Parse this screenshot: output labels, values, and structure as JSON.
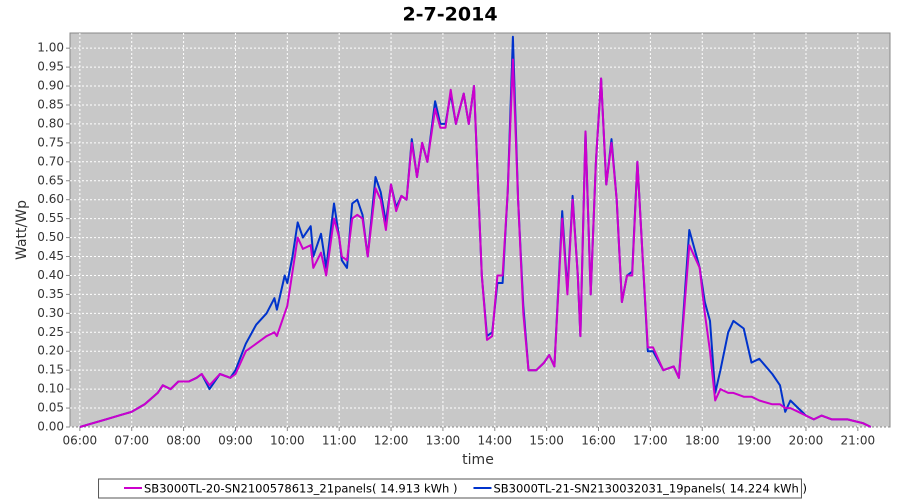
{
  "chart_data": {
    "type": "line",
    "title": "2-7-2014",
    "x_label": "time",
    "y_label": "Watt/Wp",
    "x": [
      6.0,
      6.25,
      6.5,
      6.75,
      7.0,
      7.25,
      7.5,
      7.6,
      7.75,
      7.9,
      8.1,
      8.25,
      8.35,
      8.5,
      8.7,
      8.9,
      9.0,
      9.2,
      9.4,
      9.6,
      9.75,
      9.8,
      9.95,
      10.0,
      10.1,
      10.2,
      10.3,
      10.45,
      10.5,
      10.65,
      10.75,
      10.9,
      11.0,
      11.05,
      11.15,
      11.25,
      11.35,
      11.45,
      11.55,
      11.7,
      11.8,
      11.9,
      12.0,
      12.1,
      12.2,
      12.3,
      12.4,
      12.5,
      12.6,
      12.7,
      12.85,
      12.95,
      13.05,
      13.15,
      13.25,
      13.4,
      13.5,
      13.6,
      13.75,
      13.85,
      13.95,
      14.05,
      14.15,
      14.25,
      14.35,
      14.45,
      14.55,
      14.65,
      14.8,
      14.95,
      15.05,
      15.15,
      15.3,
      15.4,
      15.5,
      15.6,
      15.65,
      15.75,
      15.85,
      15.95,
      16.05,
      16.15,
      16.25,
      16.35,
      16.45,
      16.55,
      16.65,
      16.75,
      16.85,
      16.95,
      17.05,
      17.25,
      17.45,
      17.55,
      17.75,
      17.85,
      17.95,
      18.05,
      18.15,
      18.25,
      18.35,
      18.5,
      18.6,
      18.8,
      18.95,
      19.1,
      19.35,
      19.5,
      19.6,
      19.7,
      19.85,
      20.0,
      20.15,
      20.3,
      20.5,
      20.8,
      21.1,
      21.25
    ],
    "series": [
      {
        "name": "SB3000TL-20-SN2100578613_21panels( 14.913 kWh )",
        "color": "#cc00cc",
        "values": [
          0,
          0.01,
          0.02,
          0.03,
          0.04,
          0.06,
          0.09,
          0.11,
          0.1,
          0.12,
          0.12,
          0.13,
          0.14,
          0.11,
          0.14,
          0.13,
          0.14,
          0.2,
          0.22,
          0.24,
          0.25,
          0.24,
          0.3,
          0.32,
          0.41,
          0.5,
          0.47,
          0.48,
          0.42,
          0.46,
          0.4,
          0.55,
          0.5,
          0.45,
          0.44,
          0.55,
          0.56,
          0.55,
          0.45,
          0.63,
          0.6,
          0.52,
          0.64,
          0.57,
          0.61,
          0.6,
          0.75,
          0.66,
          0.75,
          0.7,
          0.84,
          0.79,
          0.79,
          0.89,
          0.8,
          0.88,
          0.8,
          0.9,
          0.4,
          0.23,
          0.24,
          0.4,
          0.4,
          0.62,
          0.97,
          0.6,
          0.3,
          0.15,
          0.15,
          0.17,
          0.19,
          0.16,
          0.55,
          0.35,
          0.6,
          0.4,
          0.24,
          0.78,
          0.35,
          0.7,
          0.92,
          0.64,
          0.75,
          0.6,
          0.33,
          0.4,
          0.4,
          0.7,
          0.45,
          0.21,
          0.21,
          0.15,
          0.16,
          0.13,
          0.48,
          0.45,
          0.42,
          0.3,
          0.2,
          0.07,
          0.1,
          0.09,
          0.09,
          0.08,
          0.08,
          0.07,
          0.06,
          0.06,
          0.05,
          0.05,
          0.04,
          0.03,
          0.02,
          0.03,
          0.02,
          0.02,
          0.01,
          0
        ]
      },
      {
        "name": "SB3000TL-21-SN2130032031_19panels( 14.224 kWh )",
        "color": "#0033cc",
        "values": [
          0,
          0.01,
          0.02,
          0.03,
          0.04,
          0.06,
          0.09,
          0.11,
          0.1,
          0.12,
          0.12,
          0.13,
          0.14,
          0.1,
          0.14,
          0.13,
          0.15,
          0.22,
          0.27,
          0.3,
          0.34,
          0.31,
          0.4,
          0.38,
          0.45,
          0.54,
          0.5,
          0.53,
          0.45,
          0.51,
          0.42,
          0.59,
          0.5,
          0.44,
          0.42,
          0.59,
          0.6,
          0.56,
          0.45,
          0.66,
          0.62,
          0.54,
          0.64,
          0.58,
          0.61,
          0.6,
          0.76,
          0.66,
          0.75,
          0.7,
          0.86,
          0.8,
          0.8,
          0.88,
          0.8,
          0.88,
          0.8,
          0.9,
          0.4,
          0.24,
          0.25,
          0.38,
          0.38,
          0.62,
          1.03,
          0.6,
          0.32,
          0.15,
          0.15,
          0.17,
          0.19,
          0.16,
          0.57,
          0.36,
          0.61,
          0.4,
          0.24,
          0.78,
          0.35,
          0.7,
          0.92,
          0.64,
          0.76,
          0.6,
          0.33,
          0.4,
          0.41,
          0.7,
          0.45,
          0.2,
          0.2,
          0.15,
          0.16,
          0.13,
          0.52,
          0.47,
          0.42,
          0.33,
          0.28,
          0.09,
          0.15,
          0.25,
          0.28,
          0.26,
          0.17,
          0.18,
          0.14,
          0.11,
          0.04,
          0.07,
          0.05,
          0.03,
          0.02,
          0.03,
          0.02,
          0.02,
          0.01,
          0
        ]
      }
    ],
    "xlim": [
      5.81,
      21.62
    ],
    "xticks": [
      {
        "value": 6,
        "label": "06:00"
      },
      {
        "value": 7,
        "label": "07:00"
      },
      {
        "value": 8,
        "label": "08:00"
      },
      {
        "value": 9,
        "label": "09:00"
      },
      {
        "value": 10,
        "label": "10:00"
      },
      {
        "value": 11,
        "label": "11:00"
      },
      {
        "value": 12,
        "label": "12:00"
      },
      {
        "value": 13,
        "label": "13:00"
      },
      {
        "value": 14,
        "label": "14:00"
      },
      {
        "value": 15,
        "label": "15:00"
      },
      {
        "value": 16,
        "label": "16:00"
      },
      {
        "value": 17,
        "label": "17:00"
      },
      {
        "value": 18,
        "label": "18:00"
      },
      {
        "value": 19,
        "label": "19:00"
      },
      {
        "value": 20,
        "label": "20:00"
      },
      {
        "value": 21,
        "label": "21:00"
      }
    ],
    "ylim": [
      0,
      1.04
    ],
    "yticks": [
      {
        "value": 0,
        "label": "0.00"
      },
      {
        "value": 0.05,
        "label": "0.05"
      },
      {
        "value": 0.1,
        "label": "0.10"
      },
      {
        "value": 0.15,
        "label": "0.15"
      },
      {
        "value": 0.2,
        "label": "0.20"
      },
      {
        "value": 0.25,
        "label": "0.25"
      },
      {
        "value": 0.3,
        "label": "0.30"
      },
      {
        "value": 0.35,
        "label": "0.35"
      },
      {
        "value": 0.4,
        "label": "0.40"
      },
      {
        "value": 0.45,
        "label": "0.45"
      },
      {
        "value": 0.5,
        "label": "0.50"
      },
      {
        "value": 0.55,
        "label": "0.55"
      },
      {
        "value": 0.6,
        "label": "0.60"
      },
      {
        "value": 0.65,
        "label": "0.65"
      },
      {
        "value": 0.7,
        "label": "0.70"
      },
      {
        "value": 0.75,
        "label": "0.75"
      },
      {
        "value": 0.8,
        "label": "0.80"
      },
      {
        "value": 0.85,
        "label": "0.85"
      },
      {
        "value": 0.9,
        "label": "0.90"
      },
      {
        "value": 0.95,
        "label": "0.95"
      },
      {
        "value": 1,
        "label": "1.00"
      }
    ],
    "grid": true
  }
}
